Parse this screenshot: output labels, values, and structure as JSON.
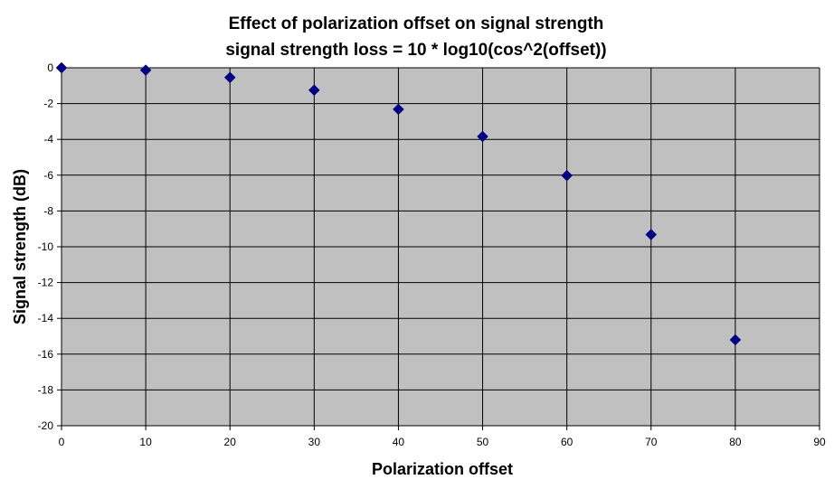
{
  "chart_data": {
    "type": "scatter",
    "title": "Effect of polarization offset on signal strength",
    "subtitle": "signal strength loss = 10 * log10(cos^2(offset))",
    "xlabel": "Polarization offset",
    "ylabel": "Signal strength (dB)",
    "xlim": [
      0,
      90
    ],
    "ylim": [
      -20,
      0
    ],
    "x_ticks": [
      0,
      10,
      20,
      30,
      40,
      50,
      60,
      70,
      80,
      90
    ],
    "y_ticks": [
      0,
      -2,
      -4,
      -6,
      -8,
      -10,
      -12,
      -14,
      -16,
      -18,
      -20
    ],
    "grid": true,
    "legend": "none",
    "marker": "diamond",
    "colors": {
      "plot_background": "#c0c0c0",
      "marker": "#000080",
      "grid": "#000000"
    },
    "series": [
      {
        "x": [
          0,
          10,
          20,
          30,
          40,
          50,
          60,
          70,
          80
        ],
        "y": [
          0,
          -0.13,
          -0.54,
          -1.25,
          -2.32,
          -3.84,
          -6.02,
          -9.32,
          -15.2
        ]
      }
    ]
  }
}
